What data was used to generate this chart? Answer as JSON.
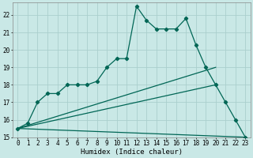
{
  "xlabel": "Humidex (Indice chaleur)",
  "xlim": [
    -0.5,
    23.5
  ],
  "ylim": [
    15,
    22.7
  ],
  "yticks": [
    15,
    16,
    17,
    18,
    19,
    20,
    21,
    22
  ],
  "xticks": [
    0,
    1,
    2,
    3,
    4,
    5,
    6,
    7,
    8,
    9,
    10,
    11,
    12,
    13,
    14,
    15,
    16,
    17,
    18,
    19,
    20,
    21,
    22,
    23
  ],
  "bg_color": "#c9e8e6",
  "grid_color": "#aacfcd",
  "line_color": "#006655",
  "main_x": [
    0,
    1,
    2,
    3,
    4,
    5,
    6,
    7,
    8,
    9,
    10,
    11,
    12,
    13,
    14,
    15,
    16,
    17,
    18,
    19,
    20,
    21,
    22,
    23
  ],
  "main_y": [
    15.5,
    15.8,
    17.0,
    17.5,
    17.5,
    18.0,
    18.0,
    18.0,
    18.2,
    19.0,
    19.5,
    19.5,
    22.5,
    21.7,
    21.2,
    21.2,
    21.2,
    21.8,
    20.3,
    19.0,
    18.0,
    17.0,
    16.0,
    15.0
  ],
  "trend1_x": [
    0,
    20
  ],
  "trend1_y": [
    15.5,
    19.0
  ],
  "trend2_x": [
    0,
    20
  ],
  "trend2_y": [
    15.5,
    18.0
  ],
  "trend3_x": [
    0,
    23
  ],
  "trend3_y": [
    15.5,
    15.0
  ]
}
